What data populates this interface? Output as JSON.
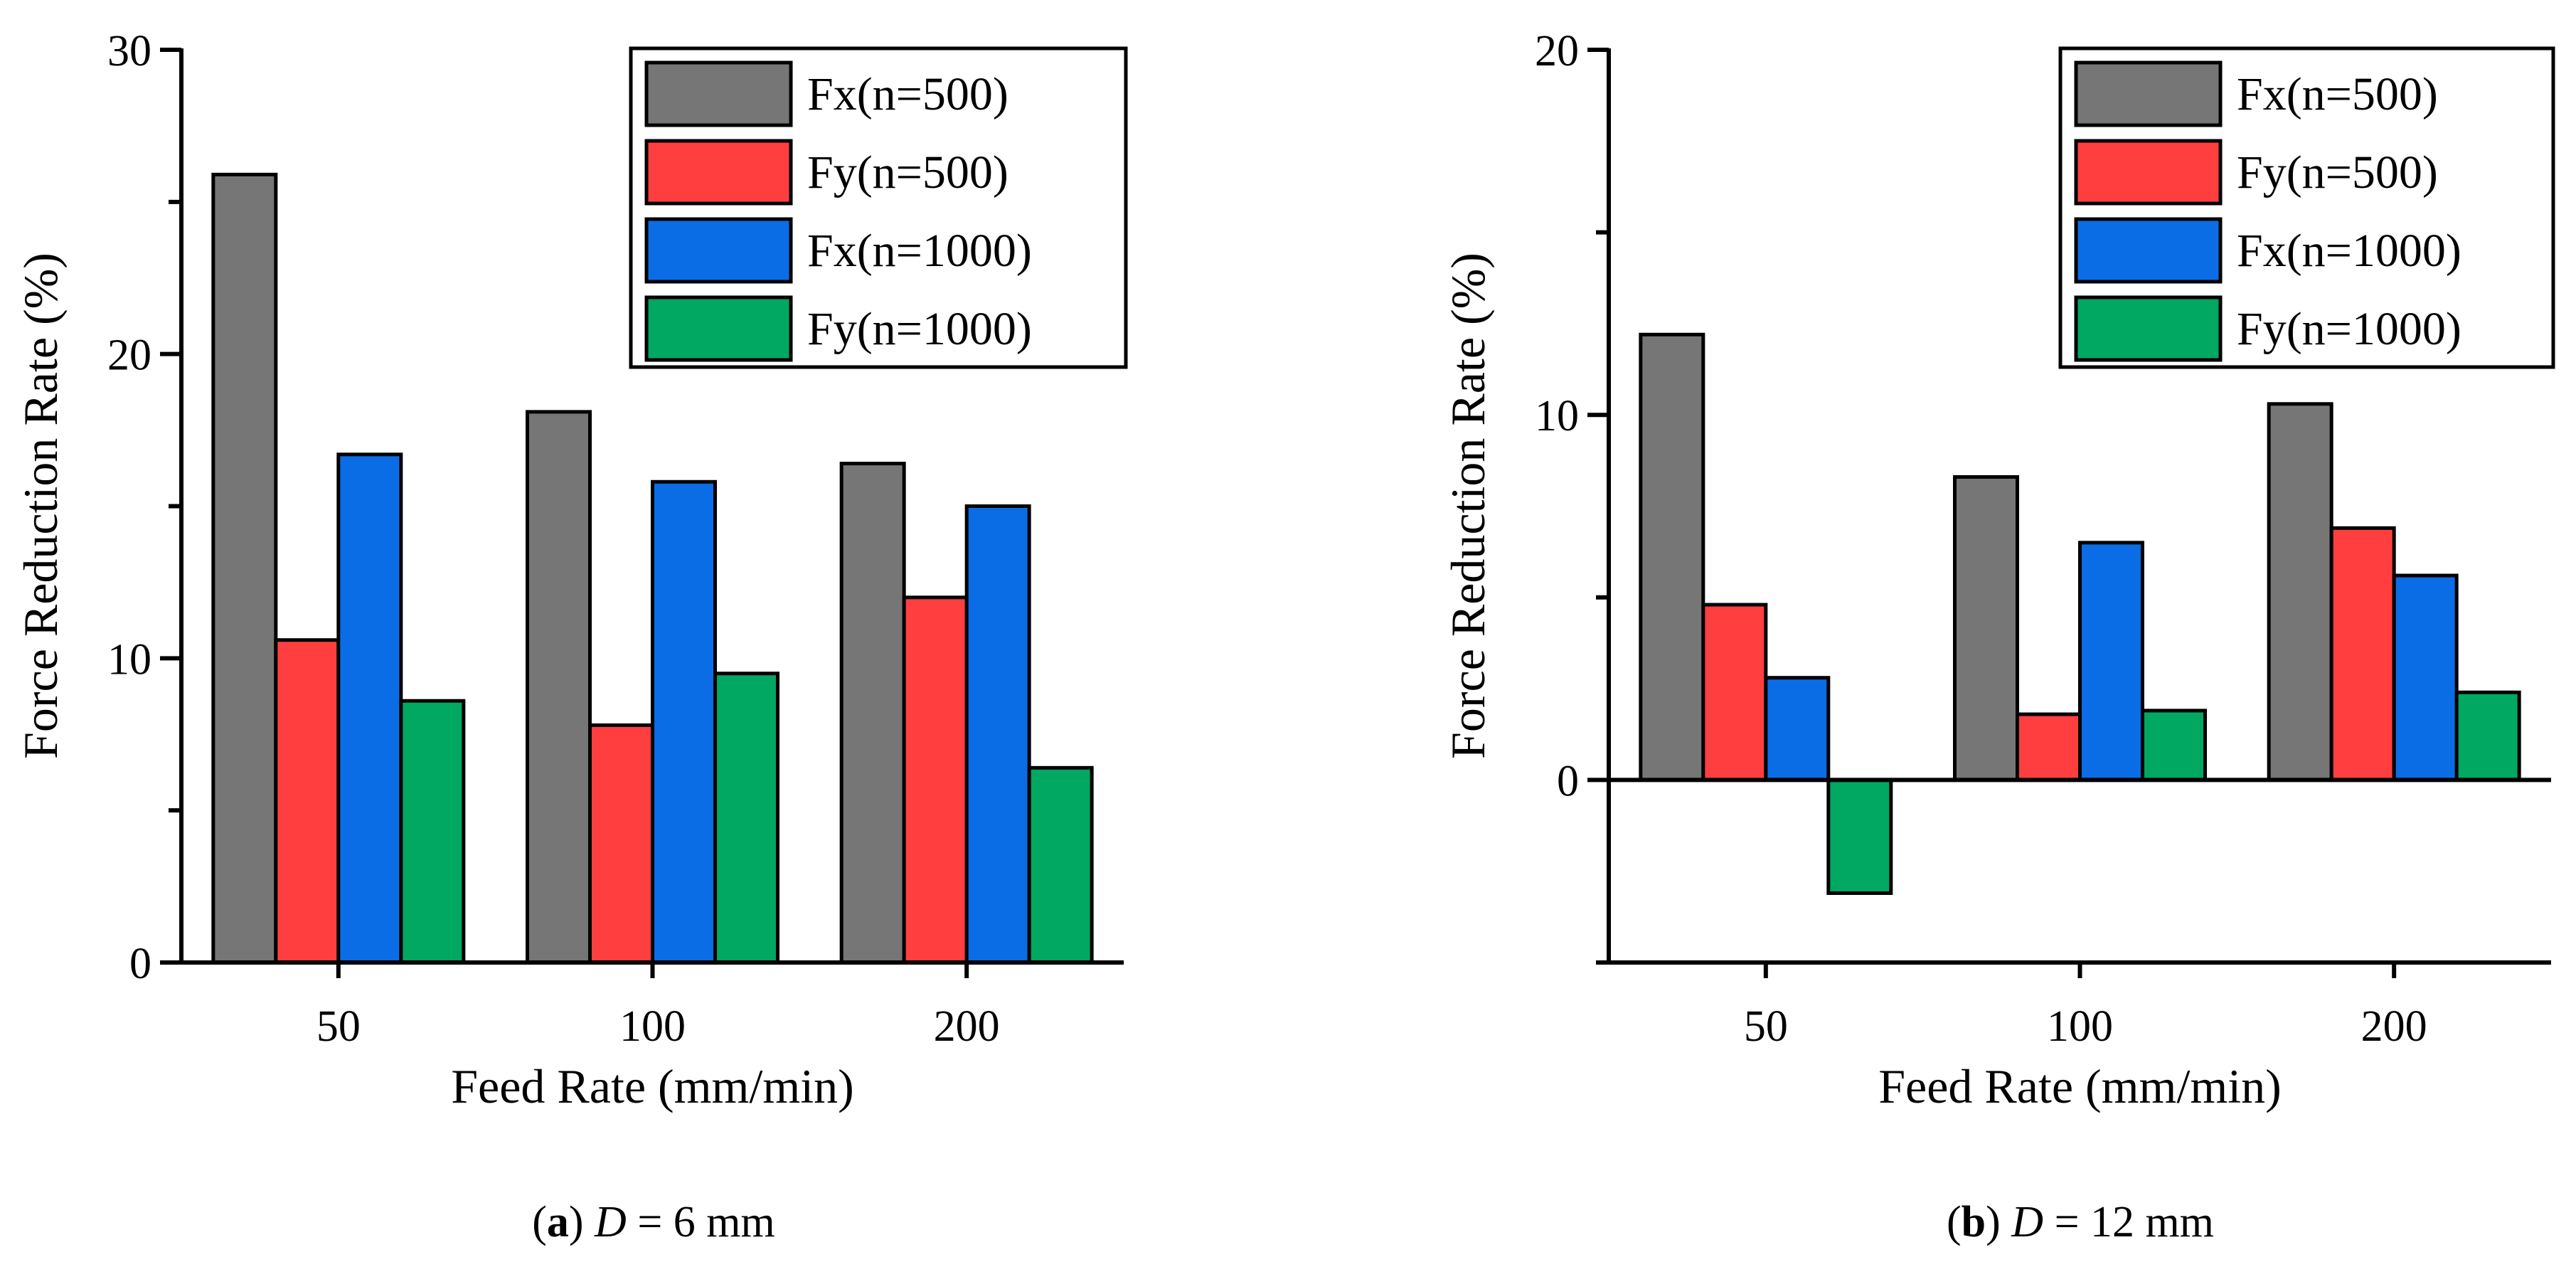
{
  "chart_data": [
    {
      "type": "bar",
      "panel_label": "a",
      "caption_var": "D",
      "caption_rest": " = 6 mm",
      "xlabel": "Feed Rate (mm/min)",
      "ylabel": "Force Reduction Rate (%)",
      "categories": [
        "50",
        "100",
        "200"
      ],
      "ylim": [
        0,
        30
      ],
      "yticks": [
        0,
        10,
        20,
        30
      ],
      "legend_position": "top-right",
      "grid": false,
      "series": [
        {
          "name": "Fx(n=500)",
          "color": "#767676",
          "values": [
            25.9,
            18.1,
            16.4
          ]
        },
        {
          "name": "Fy(n=500)",
          "color": "#ff3f3f",
          "values": [
            10.6,
            7.8,
            12.0
          ]
        },
        {
          "name": "Fx(n=1000)",
          "color": "#0a6de5",
          "values": [
            16.7,
            15.8,
            15.0
          ]
        },
        {
          "name": "Fy(n=1000)",
          "color": "#00a862",
          "values": [
            8.6,
            9.5,
            6.4
          ]
        }
      ]
    },
    {
      "type": "bar",
      "panel_label": "b",
      "caption_var": "D",
      "caption_rest": " = 12 mm",
      "xlabel": "Feed Rate (mm/min)",
      "ylabel": "Force Reduction Rate (%)",
      "categories": [
        "50",
        "100",
        "200"
      ],
      "ylim": [
        -5,
        20
      ],
      "yticks": [
        0,
        10,
        20
      ],
      "legend_position": "top-right",
      "grid": false,
      "series": [
        {
          "name": "Fx(n=500)",
          "color": "#767676",
          "values": [
            12.2,
            8.3,
            10.3
          ]
        },
        {
          "name": "Fy(n=500)",
          "color": "#ff3f3f",
          "values": [
            4.8,
            1.8,
            6.9
          ]
        },
        {
          "name": "Fx(n=1000)",
          "color": "#0a6de5",
          "values": [
            2.8,
            6.5,
            5.6
          ]
        },
        {
          "name": "Fy(n=1000)",
          "color": "#00a862",
          "values": [
            -3.1,
            1.9,
            2.4
          ]
        }
      ]
    }
  ]
}
